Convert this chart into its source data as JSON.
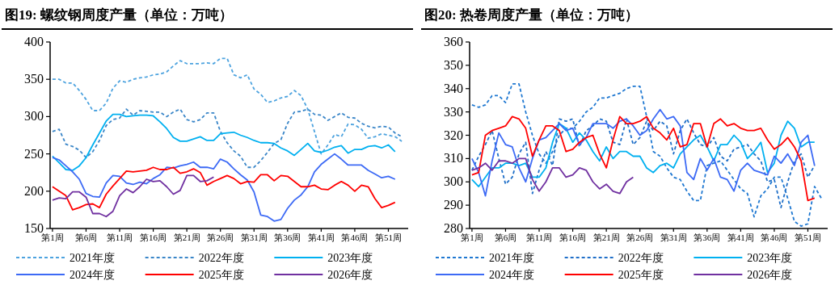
{
  "chart_data": [
    {
      "type": "line",
      "title": "图19: 螺纹钢周度产量（单位：万吨）",
      "categories": [
        "第1周",
        null,
        null,
        null,
        null,
        "第6周",
        null,
        null,
        null,
        null,
        "第11周",
        null,
        null,
        null,
        null,
        "第16周",
        null,
        null,
        null,
        null,
        "第21周",
        null,
        null,
        null,
        null,
        "第26周",
        null,
        null,
        null,
        null,
        "第31周",
        null,
        null,
        null,
        null,
        "第36周",
        null,
        null,
        null,
        null,
        "第41周",
        null,
        null,
        null,
        null,
        "第46周",
        null,
        null,
        null,
        null,
        "第51周",
        null,
        null
      ],
      "ylim": [
        150,
        400
      ],
      "yticks": [
        150,
        200,
        250,
        300,
        350,
        400
      ],
      "legend": "bottom",
      "series": [
        {
          "name": "2021年度",
          "color": "#4da3df",
          "line_style": "dashed",
          "values": [
            350,
            350,
            345,
            345,
            335,
            323,
            308,
            308,
            318,
            338,
            348,
            346,
            350,
            352,
            353,
            356,
            357,
            360,
            368,
            375,
            371,
            371,
            371,
            372,
            371,
            378,
            378,
            356,
            352,
            356,
            337,
            330,
            319,
            321,
            325,
            327,
            335,
            328,
            310,
            280,
            250,
            262,
            276,
            273,
            290,
            289,
            283,
            271,
            273,
            277,
            275,
            273,
            267
          ]
        },
        {
          "name": "2022年度",
          "color": "#3a86c8",
          "line_style": "dashed",
          "values": [
            280,
            283,
            263,
            260,
            255,
            245,
            253,
            268,
            288,
            296,
            298,
            310,
            302,
            308,
            307,
            306,
            306,
            300,
            306,
            310,
            296,
            293,
            296,
            305,
            305,
            280,
            265,
            254,
            247,
            232,
            232,
            241,
            252,
            264,
            269,
            291,
            306,
            307,
            310,
            303,
            302,
            295,
            300,
            305,
            299,
            298,
            291,
            287,
            285,
            287,
            286,
            278,
            273
          ]
        },
        {
          "name": "2023年度",
          "color": "#00b0f0",
          "line_style": "solid",
          "values": [
            247,
            238,
            229,
            228,
            234,
            245,
            262,
            278,
            294,
            303,
            303,
            300,
            301,
            302,
            302,
            301,
            293,
            284,
            272,
            267,
            267,
            270,
            273,
            268,
            268,
            277,
            278,
            279,
            275,
            272,
            268,
            265,
            265,
            264,
            258,
            254,
            248,
            256,
            264,
            254,
            252,
            255,
            259,
            261,
            251,
            256,
            256,
            260,
            261,
            258,
            262,
            253,
            null
          ]
        },
        {
          "name": "2024年度",
          "color": "#3d6af5",
          "line_style": "solid",
          "values": [
            245,
            242,
            234,
            226,
            216,
            197,
            193,
            192,
            211,
            221,
            220,
            211,
            209,
            212,
            210,
            217,
            222,
            232,
            231,
            234,
            236,
            239,
            232,
            232,
            230,
            243,
            239,
            230,
            222,
            215,
            199,
            168,
            166,
            160,
            162,
            177,
            188,
            195,
            206,
            226,
            236,
            243,
            250,
            243,
            235,
            235,
            235,
            228,
            223,
            218,
            220,
            216,
            null
          ]
        },
        {
          "name": "2025年度",
          "color": "#ff0000",
          "line_style": "solid",
          "values": [
            206,
            200,
            194,
            175,
            178,
            182,
            183,
            178,
            196,
            207,
            217,
            227,
            226,
            227,
            228,
            232,
            229,
            229,
            232,
            224,
            226,
            230,
            225,
            208,
            213,
            217,
            221,
            217,
            210,
            213,
            212,
            222,
            222,
            214,
            221,
            220,
            213,
            206,
            206,
            208,
            203,
            202,
            208,
            213,
            208,
            200,
            208,
            206,
            190,
            178,
            181,
            185,
            null
          ]
        },
        {
          "name": "2026年度",
          "color": "#7030a0",
          "line_style": "solid",
          "values": [
            188,
            191,
            190,
            199,
            199,
            192,
            170,
            170,
            166,
            173,
            194,
            203,
            198,
            206,
            216,
            213,
            214,
            206,
            196,
            201,
            221,
            221,
            213,
            214,
            219,
            null,
            null,
            null,
            null,
            null,
            null,
            null,
            null,
            null,
            null,
            null,
            null,
            null,
            null,
            null,
            null,
            null,
            null,
            null,
            null,
            null,
            null,
            null,
            null,
            null,
            null,
            null,
            null
          ]
        }
      ]
    },
    {
      "type": "line",
      "title": "图20: 热卷周度产量（单位：万吨）",
      "categories": [
        "第1周",
        null,
        null,
        null,
        null,
        "第6周",
        null,
        null,
        null,
        null,
        "第11周",
        null,
        null,
        null,
        null,
        "第16周",
        null,
        null,
        null,
        null,
        "第21周",
        null,
        null,
        null,
        null,
        "第26周",
        null,
        null,
        null,
        null,
        "第31周",
        null,
        null,
        null,
        null,
        "第36周",
        null,
        null,
        null,
        null,
        "第41周",
        null,
        null,
        null,
        null,
        "第46周",
        null,
        null,
        null,
        null,
        "第51周",
        null,
        null
      ],
      "ylim": [
        280,
        360
      ],
      "yticks": [
        280,
        290,
        300,
        310,
        320,
        330,
        340,
        350,
        360
      ],
      "legend": "bottom",
      "series": [
        {
          "name": "2021年度",
          "color": "#1f78d1",
          "line_style": "dashed",
          "values": [
            333,
            332,
            333,
            337,
            337,
            334,
            342,
            342,
            330,
            320,
            312,
            308,
            313,
            320,
            323,
            323,
            326,
            330,
            332,
            336,
            336,
            337,
            338,
            340,
            341,
            341,
            328,
            313,
            311,
            306,
            302,
            301,
            296,
            292,
            292,
            307,
            308,
            309,
            305,
            301,
            297,
            295,
            285,
            294,
            297,
            302,
            302,
            293,
            283,
            281,
            282,
            298,
            293
          ]
        },
        {
          "name": "2022年度",
          "color": "#1f6fc8",
          "line_style": "dashed",
          "values": [
            305,
            311,
            316,
            322,
            310,
            299,
            302,
            312,
            317,
            295,
            305,
            313,
            307,
            327,
            326,
            327,
            315,
            322,
            324,
            327,
            326,
            317,
            316,
            327,
            316,
            319,
            326,
            322,
            326,
            324,
            312,
            322,
            327,
            321,
            316,
            315,
            319,
            311,
            309,
            314,
            315,
            316,
            312,
            309,
            300,
            301,
            289,
            300,
            309,
            312,
            302,
            307,
            null
          ]
        },
        {
          "name": "2023年度",
          "color": "#00b0f0",
          "line_style": "solid",
          "values": [
            301,
            298,
            302,
            306,
            306,
            308,
            308,
            307,
            308,
            302,
            302,
            306,
            317,
            325,
            323,
            317,
            321,
            318,
            313,
            309,
            315,
            310,
            313,
            313,
            311,
            311,
            306,
            304,
            307,
            308,
            306,
            312,
            315,
            318,
            320,
            315,
            309,
            316,
            316,
            320,
            317,
            310,
            313,
            317,
            304,
            308,
            320,
            326,
            323,
            315,
            317,
            317,
            null
          ]
        },
        {
          "name": "2024年度",
          "color": "#3d6af5",
          "line_style": "solid",
          "values": [
            310,
            304,
            294,
            309,
            321,
            316,
            315,
            306,
            300,
            310,
            318,
            319,
            322,
            325,
            322,
            323,
            316,
            319,
            325,
            325,
            325,
            323,
            326,
            327,
            324,
            320,
            322,
            327,
            331,
            327,
            328,
            324,
            304,
            301,
            310,
            305,
            310,
            302,
            301,
            296,
            305,
            308,
            305,
            304,
            303,
            311,
            308,
            312,
            307,
            317,
            320,
            307,
            null
          ]
        },
        {
          "name": "2025年度",
          "color": "#ff0000",
          "line_style": "solid",
          "values": [
            303,
            304,
            320,
            322,
            323,
            324,
            328,
            327,
            323,
            311,
            318,
            324,
            324,
            322,
            313,
            314,
            317,
            319,
            320,
            312,
            306,
            318,
            328,
            325,
            325,
            326,
            328,
            323,
            321,
            318,
            323,
            315,
            316,
            325,
            325,
            315,
            325,
            327,
            324,
            325,
            323,
            322,
            322,
            323,
            318,
            314,
            316,
            319,
            315,
            309,
            292,
            293,
            null
          ]
        },
        {
          "name": "2026年度",
          "color": "#7030a0",
          "line_style": "solid",
          "values": [
            305,
            306,
            308,
            305,
            309,
            309,
            308,
            310,
            310,
            301,
            296,
            300,
            306,
            306,
            302,
            303,
            306,
            305,
            300,
            297,
            299,
            296,
            295,
            300,
            302,
            null,
            null,
            null,
            null,
            null,
            null,
            null,
            null,
            null,
            null,
            null,
            null,
            null,
            null,
            null,
            null,
            null,
            null,
            null,
            null,
            null,
            null,
            null,
            null,
            null,
            null,
            null,
            null
          ]
        }
      ]
    }
  ]
}
